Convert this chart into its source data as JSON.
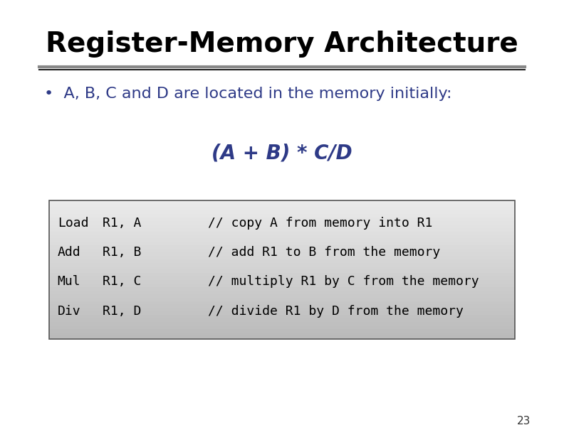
{
  "title": "Register-Memory Architecture",
  "title_fontsize": 28,
  "title_color": "#000000",
  "title_fontweight": "bold",
  "bullet_text": "A, B, C and D are located in the memory initially:",
  "bullet_fontsize": 16,
  "bullet_color": "#2E3A87",
  "formula_text": "(A + B) * C/D",
  "formula_fontsize": 20,
  "formula_color": "#2E3A87",
  "formula_fontweight": "bold",
  "code_rows": [
    [
      "Load",
      "R1, A",
      "// copy A from memory into R1"
    ],
    [
      "Add",
      "R1, B",
      "// add R1 to B from the memory"
    ],
    [
      "Mul",
      "R1, C",
      "// multiply R1 by C from the memory"
    ],
    [
      "Div",
      "R1, D",
      "// divide R1 by D from the memory"
    ]
  ],
  "code_fontsize": 13,
  "code_color": "#000000",
  "code_font": "monospace",
  "box_edgecolor": "#555555",
  "separator_color": "#444444",
  "page_number": "23",
  "bg_color": "#ffffff"
}
